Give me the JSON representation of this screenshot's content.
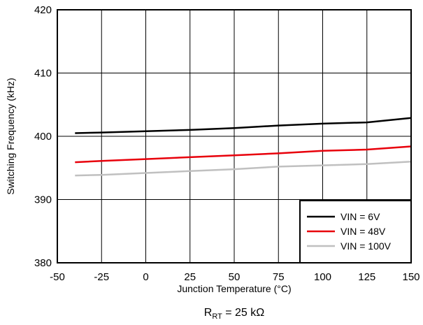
{
  "chart_data": {
    "type": "line",
    "xlabel": "Junction Temperature (°C)",
    "ylabel": "Switching Frequency (kHz)",
    "xlim": [
      -50,
      150
    ],
    "ylim": [
      380,
      420
    ],
    "xticks": [
      "-50",
      "-25",
      "0",
      "25",
      "50",
      "75",
      "100",
      "125",
      "150"
    ],
    "yticks": [
      "380",
      "390",
      "400",
      "410",
      "420"
    ],
    "grid": true,
    "legend_position": "bottom-right",
    "caption": {
      "main": "R",
      "sub": "RT",
      "rest": " = 25 kΩ"
    },
    "series": [
      {
        "name": "VIN = 6V",
        "color": "#000000",
        "x": [
          -40,
          -25,
          0,
          25,
          50,
          75,
          100,
          125,
          150
        ],
        "y": [
          400.5,
          400.6,
          400.8,
          401.0,
          401.3,
          401.7,
          402.0,
          402.2,
          402.9
        ]
      },
      {
        "name": "VIN = 48V",
        "color": "#e8000b",
        "x": [
          -40,
          -25,
          0,
          25,
          50,
          75,
          100,
          125,
          150
        ],
        "y": [
          395.9,
          396.1,
          396.4,
          396.7,
          397.0,
          397.3,
          397.7,
          397.9,
          398.4
        ]
      },
      {
        "name": "VIN = 100V",
        "color": "#c0c0c0",
        "x": [
          -40,
          -25,
          0,
          25,
          50,
          75,
          100,
          125,
          150
        ],
        "y": [
          393.8,
          393.9,
          394.2,
          394.5,
          394.8,
          395.2,
          395.4,
          395.6,
          396.0
        ]
      }
    ]
  }
}
